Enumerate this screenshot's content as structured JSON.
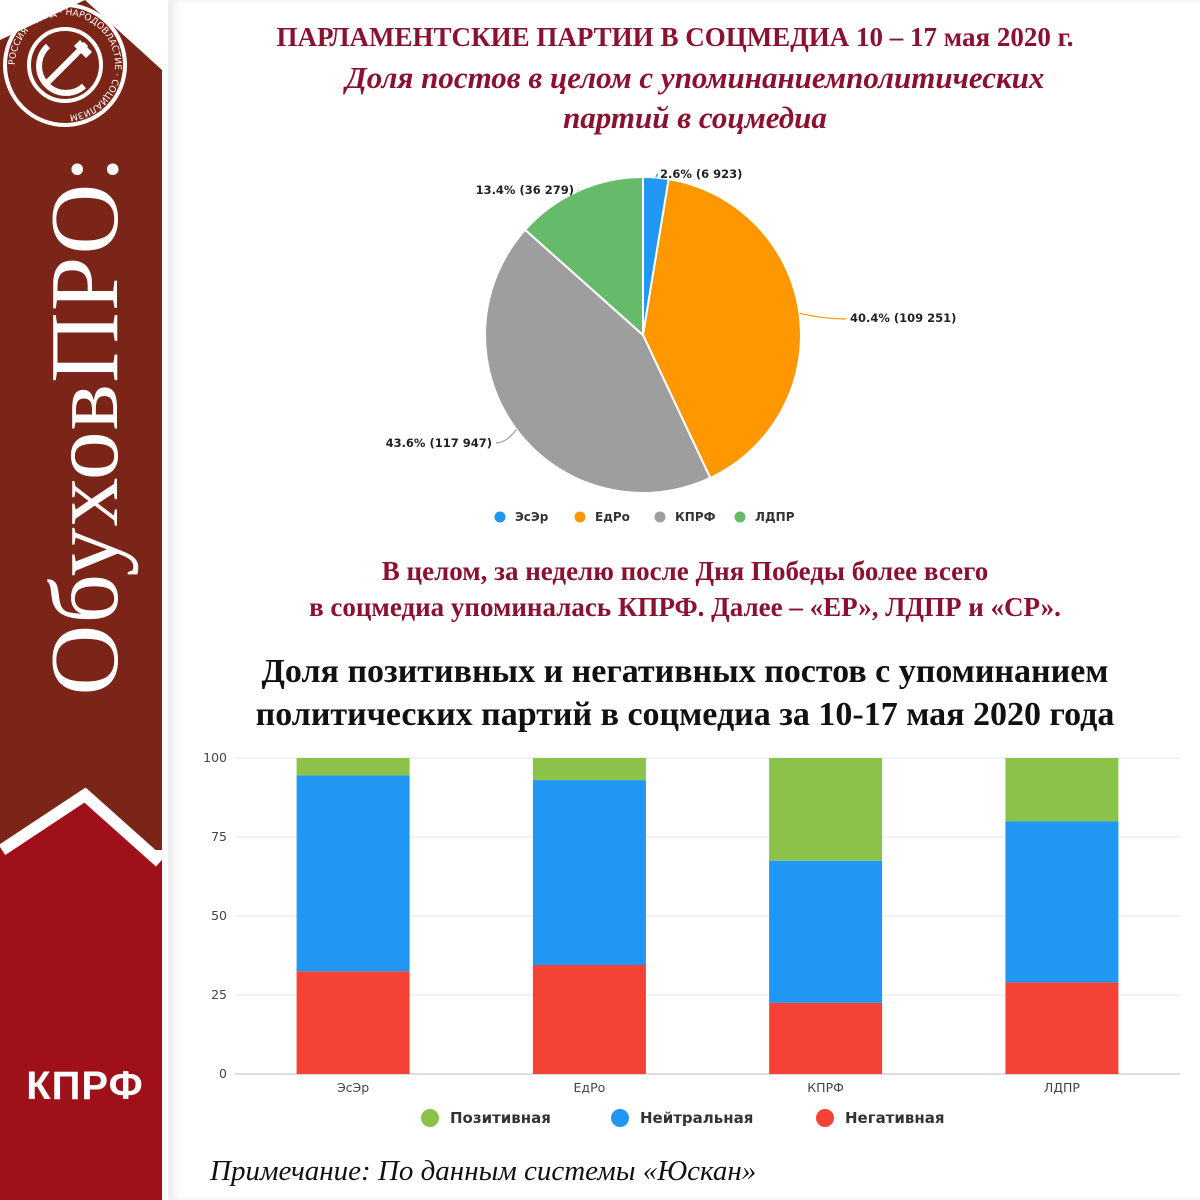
{
  "sidebar": {
    "brand_text": "ОбуховПРО:",
    "logo_caption": "КПРФ",
    "logo_ring_text": "РОССИЯ · ТРУД · НАРОДОВЛАСТИЕ · СОЦИАЛИЗМ",
    "colors": {
      "top": "#7a2518",
      "bottom": "#a0101a",
      "chevron": "#ffffff"
    }
  },
  "header": {
    "title": "ПАРЛАМЕНТСКИЕ ПАРТИИ В СОЦМЕДИА 10 – 17 мая 2020 г.",
    "subtitle_line1": "Доля постов в целом с упоминаниемполитических",
    "subtitle_line2": "партий в соцмедиа"
  },
  "conclusion": {
    "line1": "В целом, за неделю после Дня Победы более всего",
    "line2": "в соцмедиа упоминалась КПРФ. Далее – «ЕР», ЛДПР и «СР»."
  },
  "bar_section": {
    "title_line1": "Доля позитивных и негативных постов с упоминанием",
    "title_line2": "политических партий в соцмедиа за 10-17 мая 2020 года"
  },
  "note": "Примечание: По данным системы «Юскан»",
  "chart_data": [
    {
      "type": "pie",
      "title": "",
      "slices": [
        {
          "name": "ЭсЭр",
          "percent": 2.6,
          "value": 6923,
          "label": "2.6% (6 923)",
          "color": "#2196f3"
        },
        {
          "name": "ЕдРо",
          "percent": 40.4,
          "value": 109251,
          "label": "40.4% (109 251)",
          "color": "#ff9800"
        },
        {
          "name": "КПРФ",
          "percent": 43.6,
          "value": 117947,
          "label": "43.6% (117 947)",
          "color": "#9e9e9e"
        },
        {
          "name": "ЛДПР",
          "percent": 13.4,
          "value": 36279,
          "label": "13.4% (36 279)",
          "color": "#66bb6a"
        }
      ],
      "legend": [
        "ЭсЭр",
        "ЕдРо",
        "КПРФ",
        "ЛДПР"
      ],
      "legend_position": "bottom"
    },
    {
      "type": "bar",
      "stacked": true,
      "categories": [
        "ЭсЭр",
        "ЕдРо",
        "КПРФ",
        "ЛДПР"
      ],
      "series": [
        {
          "name": "Негативная",
          "color": "#f44336",
          "values": [
            32.5,
            34.5,
            22.5,
            29
          ]
        },
        {
          "name": "Нейтральная",
          "color": "#2196f3",
          "values": [
            62,
            58.5,
            45,
            51
          ]
        },
        {
          "name": "Позитивная",
          "color": "#8bc34a",
          "values": [
            5.5,
            7,
            32.5,
            20
          ]
        }
      ],
      "legend": [
        "Позитивная",
        "Нейтральная",
        "Негативная"
      ],
      "legend_position": "bottom",
      "ylim": [
        0,
        100
      ],
      "yticks": [
        "0",
        "25",
        "50",
        "75",
        "100"
      ],
      "grid": true,
      "xlabel": "",
      "ylabel": ""
    }
  ]
}
